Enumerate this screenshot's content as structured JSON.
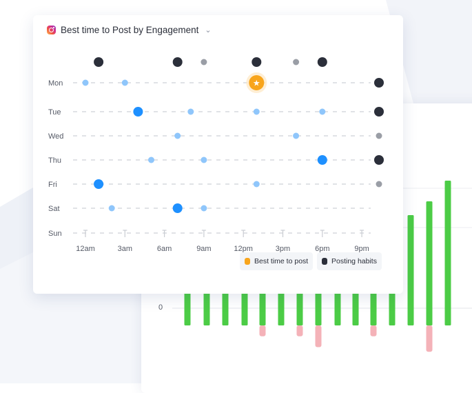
{
  "card": {
    "title": "Best time to Post by Engagement",
    "network_icon": "instagram-icon",
    "dropdown_icon": "chevron-down-icon"
  },
  "legend": {
    "best_time_label": "Best time to post",
    "posting_habits_label": "Posting habits"
  },
  "colors": {
    "best": "#f8a51c",
    "habit": "#2b2f3a",
    "engagement_strong": "#1e90ff",
    "engagement_light": "#8fc6fb",
    "habit_light": "#9a9ea6",
    "grid": "#d6d9de",
    "bar_positive": "#4ccc46",
    "bar_negative": "#f4b2b8"
  },
  "chart_data": [
    {
      "type": "scatter",
      "title": "Best time to Post by Engagement",
      "days": [
        "Mon",
        "Tue",
        "Wed",
        "Thu",
        "Fri",
        "Sat",
        "Sun"
      ],
      "time_ticks": [
        "12am",
        "3am",
        "6am",
        "9am",
        "12pm",
        "3pm",
        "6pm",
        "9pm"
      ],
      "hours_per_tick": 3,
      "engagement_points": [
        {
          "day": "Mon",
          "hour": 0,
          "level": "light"
        },
        {
          "day": "Mon",
          "hour": 3,
          "level": "light"
        },
        {
          "day": "Mon",
          "hour": 13,
          "level": "best"
        },
        {
          "day": "Tue",
          "hour": 4,
          "level": "strong"
        },
        {
          "day": "Tue",
          "hour": 8,
          "level": "light"
        },
        {
          "day": "Tue",
          "hour": 13,
          "level": "light"
        },
        {
          "day": "Tue",
          "hour": 18,
          "level": "light"
        },
        {
          "day": "Wed",
          "hour": 7,
          "level": "light"
        },
        {
          "day": "Wed",
          "hour": 16,
          "level": "light"
        },
        {
          "day": "Thu",
          "hour": 5,
          "level": "light"
        },
        {
          "day": "Thu",
          "hour": 9,
          "level": "light"
        },
        {
          "day": "Thu",
          "hour": 18,
          "level": "strong"
        },
        {
          "day": "Fri",
          "hour": 1,
          "level": "strong"
        },
        {
          "day": "Fri",
          "hour": 13,
          "level": "light"
        },
        {
          "day": "Sat",
          "hour": 2,
          "level": "light"
        },
        {
          "day": "Sat",
          "hour": 7,
          "level": "strong"
        },
        {
          "day": "Sat",
          "hour": 9,
          "level": "light"
        }
      ],
      "posting_habits_by_hour": [
        {
          "hour": 1,
          "level": "high"
        },
        {
          "hour": 7,
          "level": "high"
        },
        {
          "hour": 9,
          "level": "low"
        },
        {
          "hour": 13,
          "level": "high"
        },
        {
          "hour": 16,
          "level": "low"
        },
        {
          "hour": 18,
          "level": "high"
        }
      ],
      "posting_habits_by_day": [
        {
          "day": "Mon",
          "level": "high"
        },
        {
          "day": "Tue",
          "level": "high"
        },
        {
          "day": "Wed",
          "level": "low"
        },
        {
          "day": "Thu",
          "level": "high"
        },
        {
          "day": "Fri",
          "level": "low"
        }
      ],
      "legend": [
        "Best time to post",
        "Posting habits"
      ]
    },
    {
      "type": "bar",
      "ytick": "0",
      "values": [
        0.8,
        0.8,
        0.8,
        0.8,
        0.8,
        0.8,
        0.8,
        0.8,
        0.8,
        0.8,
        0.8,
        1.8,
        1.6,
        1.8,
        2.1
      ],
      "negative_values": [
        0,
        0,
        0,
        0,
        -0.35,
        0,
        -0.35,
        -0.7,
        0,
        0,
        -0.35,
        0,
        0,
        -0.85,
        0
      ]
    }
  ]
}
